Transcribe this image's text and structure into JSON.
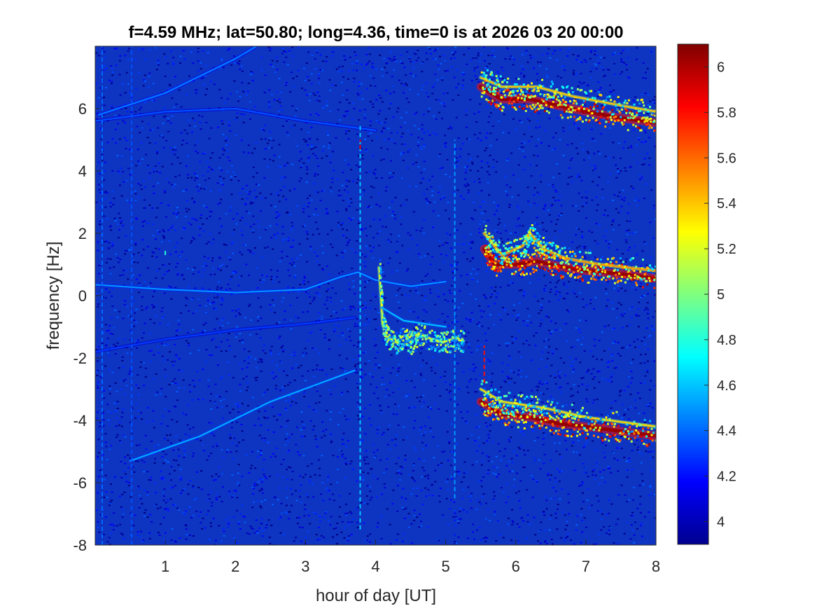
{
  "chart_data": {
    "type": "heatmap",
    "title": "f=4.59 MHz;  lat=50.80; long=4.36, time=0 is at 2026 03 20 00:00",
    "xlabel": "hour of day [UT]",
    "ylabel": "frequency [Hz]",
    "xlim": [
      0,
      8
    ],
    "ylim": [
      -8,
      8
    ],
    "x_ticks": [
      "1",
      "2",
      "3",
      "4",
      "5",
      "6",
      "7",
      "8"
    ],
    "y_ticks": [
      "-8",
      "-6",
      "-4",
      "-2",
      "0",
      "2",
      "4",
      "6"
    ],
    "colorbar": {
      "colormap": "jet",
      "range": [
        3.9,
        6.1
      ],
      "ticks": [
        "4",
        "4.2",
        "4.4",
        "4.6",
        "4.8",
        "5",
        "5.2",
        "5.4",
        "5.6",
        "5.8",
        "6"
      ]
    },
    "grid": false,
    "background_level": 4.15,
    "traces": [
      {
        "points": [
          [
            0.05,
            5.8
          ],
          [
            1,
            6.5
          ],
          [
            2,
            7.6
          ],
          [
            2.3,
            8
          ]
        ],
        "level": 4.45
      },
      {
        "points": [
          [
            0,
            5.6
          ],
          [
            1,
            5.9
          ],
          [
            2,
            6.0
          ],
          [
            3,
            5.6
          ],
          [
            4,
            5.3
          ]
        ],
        "level": 4.35
      },
      {
        "points": [
          [
            0,
            0.35
          ],
          [
            1,
            0.2
          ],
          [
            2,
            0.1
          ],
          [
            3,
            0.2
          ],
          [
            3.5,
            0.6
          ],
          [
            3.75,
            0.75
          ],
          [
            4,
            0.5
          ],
          [
            4.5,
            0.3
          ],
          [
            5,
            0.45
          ]
        ],
        "level": 4.5
      },
      {
        "points": [
          [
            0.5,
            -5.3
          ],
          [
            1.5,
            -4.5
          ],
          [
            2.5,
            -3.4
          ],
          [
            3.7,
            -2.4
          ]
        ],
        "level": 4.55
      },
      {
        "points": [
          [
            0,
            -1.8
          ],
          [
            1,
            -1.4
          ],
          [
            2,
            -1.1
          ],
          [
            3,
            -0.9
          ],
          [
            3.7,
            -0.7
          ]
        ],
        "level": 4.3
      },
      {
        "points": [
          [
            4.05,
            0.9
          ],
          [
            4.1,
            -0.9
          ],
          [
            4.15,
            -1.3
          ],
          [
            4.3,
            -1.5
          ],
          [
            4.4,
            -1.3
          ],
          [
            4.5,
            -1.5
          ],
          [
            4.6,
            -1.2
          ],
          [
            4.8,
            -1.4
          ],
          [
            4.95,
            -1.5
          ],
          [
            5.1,
            -1.4
          ],
          [
            5.25,
            -1.45
          ]
        ],
        "level": 5.25
      },
      {
        "points": [
          [
            4.1,
            -0.4
          ],
          [
            4.4,
            -0.8
          ],
          [
            4.7,
            -0.9
          ],
          [
            5.0,
            -1.0
          ]
        ],
        "level": 4.6
      },
      {
        "points": [
          [
            5.5,
            6.7
          ],
          [
            5.8,
            6.3
          ],
          [
            6.2,
            6.3
          ],
          [
            6.6,
            6.1
          ],
          [
            7.0,
            5.9
          ],
          [
            7.5,
            5.7
          ],
          [
            8.0,
            5.55
          ]
        ],
        "level": 6.05
      },
      {
        "points": [
          [
            5.5,
            7.0
          ],
          [
            5.8,
            6.7
          ],
          [
            6.3,
            6.7
          ],
          [
            6.8,
            6.4
          ],
          [
            7.5,
            6.1
          ],
          [
            8.0,
            5.9
          ]
        ],
        "level": 5.4
      },
      {
        "points": [
          [
            5.55,
            1.5
          ],
          [
            5.7,
            1.0
          ],
          [
            6.0,
            1.0
          ],
          [
            6.3,
            1.1
          ],
          [
            6.6,
            0.95
          ],
          [
            7.0,
            0.8
          ],
          [
            7.5,
            0.7
          ],
          [
            8.0,
            0.55
          ]
        ],
        "level": 6.05
      },
      {
        "points": [
          [
            5.55,
            2.0
          ],
          [
            5.8,
            1.3
          ],
          [
            6.1,
            1.6
          ],
          [
            6.2,
            2.0
          ],
          [
            6.4,
            1.5
          ],
          [
            6.7,
            1.2
          ],
          [
            7.2,
            1.0
          ],
          [
            8.0,
            0.8
          ]
        ],
        "level": 5.5
      },
      {
        "points": [
          [
            5.5,
            -3.4
          ],
          [
            5.8,
            -3.8
          ],
          [
            6.2,
            -3.9
          ],
          [
            6.6,
            -4.1
          ],
          [
            7.0,
            -4.2
          ],
          [
            7.5,
            -4.35
          ],
          [
            8.0,
            -4.5
          ]
        ],
        "level": 6.05
      },
      {
        "points": [
          [
            5.5,
            -3.0
          ],
          [
            5.8,
            -3.4
          ],
          [
            6.1,
            -3.5
          ],
          [
            6.4,
            -3.6
          ],
          [
            7.0,
            -3.9
          ],
          [
            8.0,
            -4.2
          ]
        ],
        "level": 5.35
      }
    ],
    "vertical_lines": [
      {
        "x": 0.1,
        "y": [
          -8,
          8
        ],
        "level": 4.4
      },
      {
        "x": 0.52,
        "y": [
          -8,
          8
        ],
        "level": 4.35
      },
      {
        "x": 1.0,
        "y": [
          1.3,
          1.5
        ],
        "level": 4.8
      },
      {
        "x": 3.78,
        "y": [
          -7.5,
          5.5
        ],
        "level": 4.6
      },
      {
        "x": 3.78,
        "y": [
          4.7,
          5.0
        ],
        "level": 5.9
      },
      {
        "x": 5.13,
        "y": [
          -6.5,
          5.0
        ],
        "level": 4.5
      },
      {
        "x": 5.55,
        "y": [
          -2.8,
          -1.6
        ],
        "level": 5.8
      }
    ]
  }
}
